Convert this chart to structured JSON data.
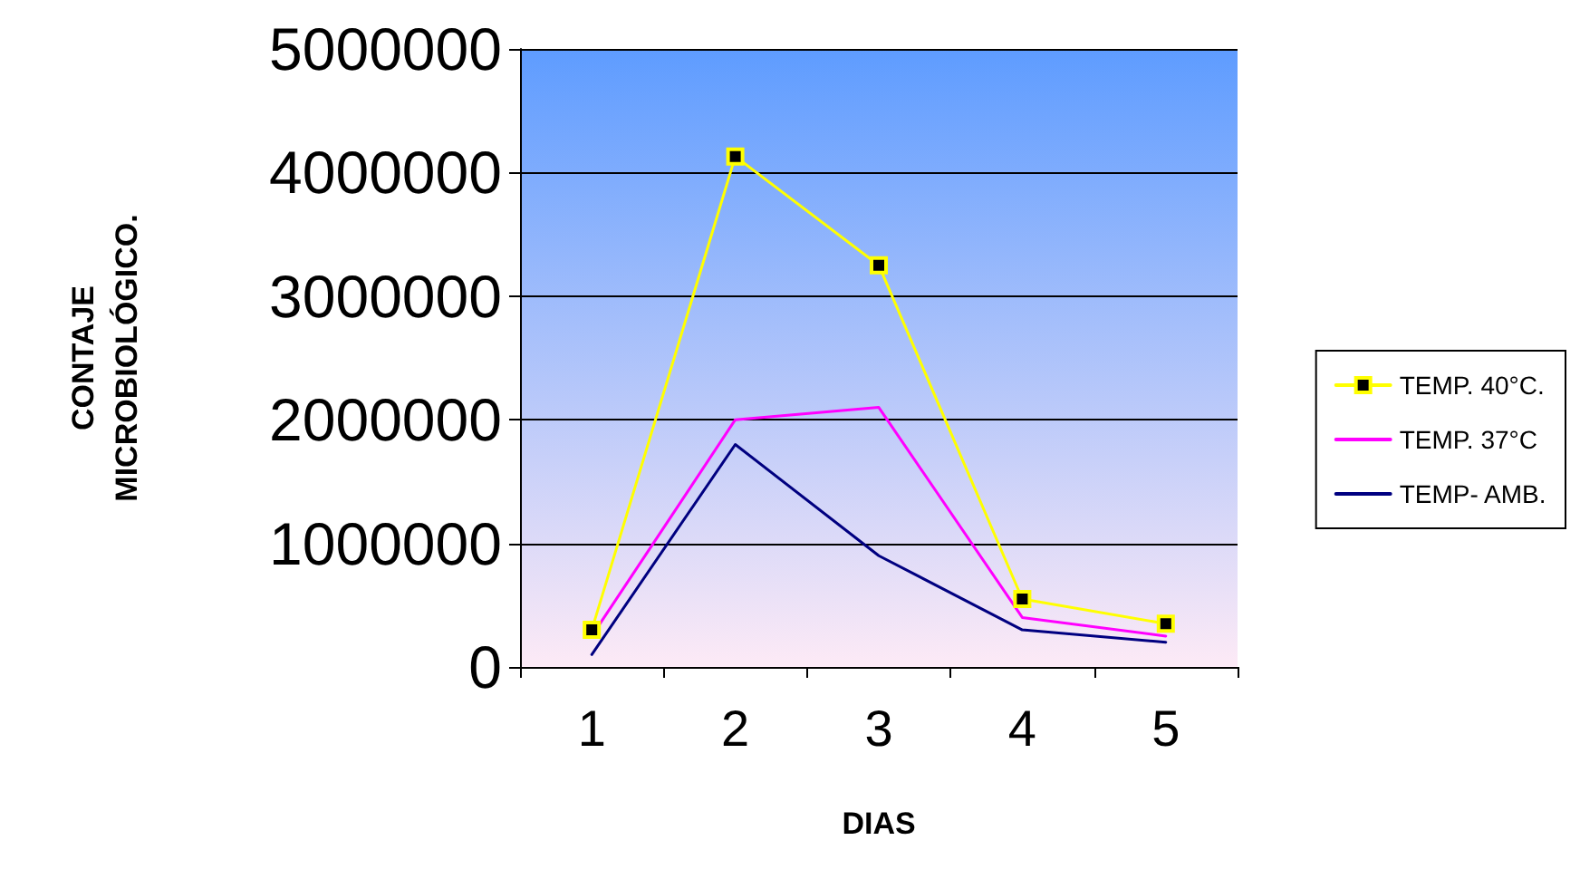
{
  "chart_data": {
    "type": "line",
    "xlabel": "DIAS",
    "ylabel": "CONTAJE\nMICROBIOLÓGICO.",
    "categories": [
      "1",
      "2",
      "3",
      "4",
      "5"
    ],
    "series": [
      {
        "name": "TEMP. 40°C.",
        "color": "#ffff00",
        "marker": "square",
        "values": [
          300000,
          4130000,
          3250000,
          550000,
          350000
        ]
      },
      {
        "name": "TEMP. 37°C",
        "color": "#ff00ff",
        "marker": "none",
        "values": [
          250000,
          2000000,
          2100000,
          400000,
          250000
        ]
      },
      {
        "name": "TEMP- AMB.",
        "color": "#000080",
        "marker": "none",
        "values": [
          100000,
          1800000,
          900000,
          300000,
          200000
        ]
      }
    ],
    "ylim": [
      0,
      5000000
    ],
    "yticks": [
      0,
      1000000,
      2000000,
      3000000,
      4000000,
      5000000
    ],
    "grid": "y",
    "legend": "right",
    "line_style": "solid"
  }
}
